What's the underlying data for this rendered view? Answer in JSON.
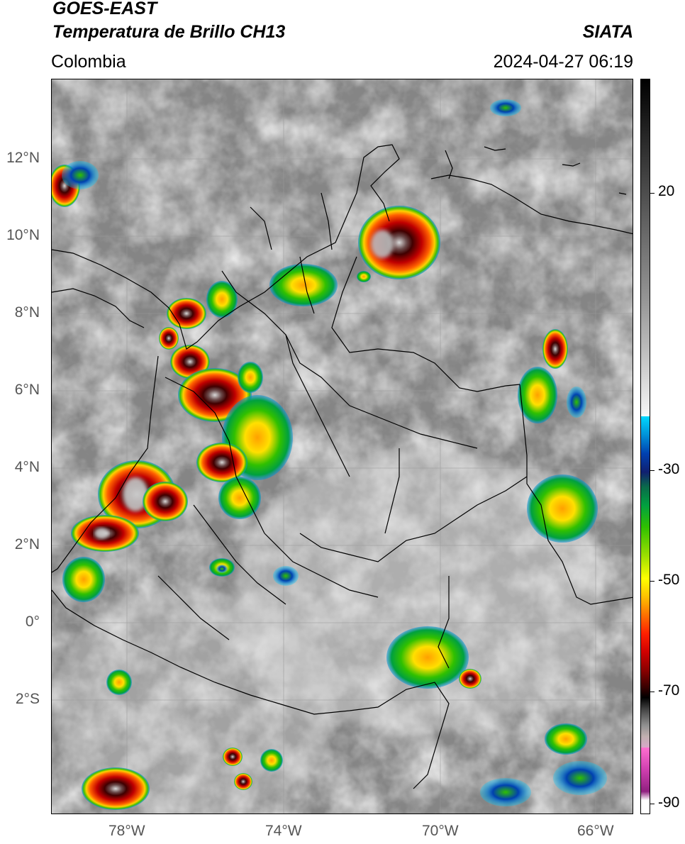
{
  "header": {
    "title_line1": "GOES-EAST",
    "title_line2": "Temperatura de Brillo CH13",
    "region": "Colombia",
    "source": "SIATA",
    "datetime": "2024-04-27 06:19"
  },
  "map": {
    "lat_labels": [
      "12°N",
      "10°N",
      "8°N",
      "6°N",
      "4°N",
      "2°N",
      "0°",
      "2°S"
    ],
    "lon_labels": [
      "78°W",
      "74°W",
      "70°W",
      "66°W"
    ]
  },
  "colorbar": {
    "labels": [
      "20",
      "-30",
      "-50",
      "-70",
      "-90"
    ]
  },
  "colors": {
    "deep_convection": "#b00000",
    "moderate": "#30c000",
    "shallow": "#0090d8",
    "clear_sky": "#8a8a8a"
  }
}
